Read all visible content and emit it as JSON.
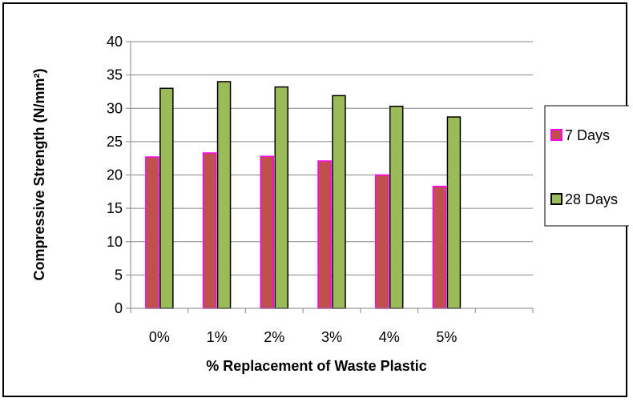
{
  "chart_data": {
    "type": "bar",
    "title": "",
    "xlabel": "% Replacement of Waste Plastic",
    "ylabel": "Compressive Strength (N/mm²)",
    "categories": [
      "0%",
      "1%",
      "2%",
      "3%",
      "4%",
      "5%",
      ""
    ],
    "series": [
      {
        "name": "7 Days",
        "values": [
          22.7,
          23.3,
          22.8,
          22.1,
          20.0,
          18.3,
          null
        ],
        "color": "#C0504D",
        "border": "#FF00FF"
      },
      {
        "name": "28 Days",
        "values": [
          33.0,
          34.0,
          33.2,
          31.9,
          30.3,
          28.7,
          null
        ],
        "color": "#9BBB59",
        "border": "#000000"
      }
    ],
    "ylim": [
      0,
      40
    ],
    "yticks": [
      0,
      5,
      10,
      15,
      20,
      25,
      30,
      35,
      40
    ],
    "grid": true,
    "legend_position": "right"
  }
}
